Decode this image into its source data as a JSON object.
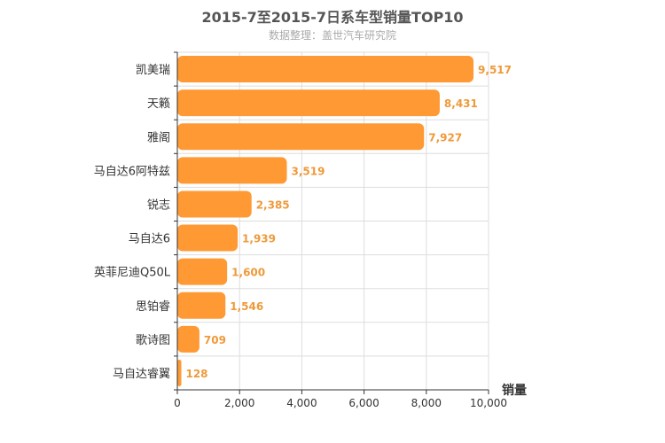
{
  "chart_data": {
    "type": "bar",
    "orientation": "horizontal",
    "title": "2015-7至2015-7日系车型销量TOP10",
    "subtitle": "数据整理：盖世汽车研究院",
    "xlabel": "销量",
    "ylabel": "",
    "categories": [
      "凯美瑞",
      "天籁",
      "雅阁",
      "马自达6阿特兹",
      "锐志",
      "马自达6",
      "英菲尼迪Q50L",
      "思铂睿",
      "歌诗图",
      "马自达睿翼"
    ],
    "values": [
      9517,
      8431,
      7927,
      3519,
      2385,
      1939,
      1600,
      1546,
      709,
      128
    ],
    "value_labels": [
      "9,517",
      "8,431",
      "7,927",
      "3,519",
      "2,385",
      "1,939",
      "1,600",
      "1,546",
      "709",
      "128"
    ],
    "xlim": [
      0,
      10000
    ],
    "x_ticks": [
      0,
      2000,
      4000,
      6000,
      8000,
      10000
    ],
    "x_tick_labels": [
      "0",
      "2,000",
      "4,000",
      "6,000",
      "8,000",
      "10,000"
    ],
    "grid": true,
    "colors": {
      "bar": "#ff9933",
      "value_label": "#ee9a3a",
      "grid": "#dddddd",
      "axis": "#333333"
    }
  }
}
